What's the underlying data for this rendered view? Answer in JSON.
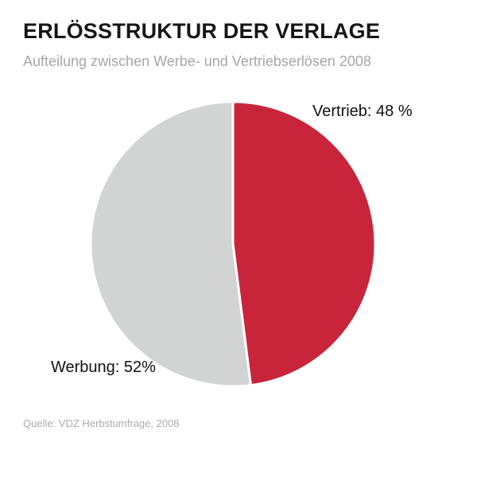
{
  "chart_data": {
    "type": "pie",
    "title": "ERLÖSSTRUKTUR DER VERLAGE",
    "subtitle": "Aufteilung zwischen Werbe- und Vertriebserlösen 2008",
    "source": "Quelle: VDZ Herbstumfrage, 2008",
    "unit": "%",
    "categories": [
      "Vertrieb",
      "Werbung"
    ],
    "values": [
      48,
      52
    ],
    "slices": [
      {
        "name": "Vertrieb",
        "value": 48,
        "label": "Vertrieb: 48 %",
        "color": "#c8253a"
      },
      {
        "name": "Werbung",
        "value": 52,
        "label": "Werbung: 52%",
        "color": "#d2d3d3"
      }
    ],
    "start_angle": "top",
    "direction": "clockwise",
    "separator_color": "#ffffff",
    "legend": "none",
    "colors": {
      "title_text": "#161616",
      "subtitle_text": "#a6a6a6",
      "label_text": "#111111",
      "source_text": "#ababab",
      "background": "#ffffff"
    }
  }
}
